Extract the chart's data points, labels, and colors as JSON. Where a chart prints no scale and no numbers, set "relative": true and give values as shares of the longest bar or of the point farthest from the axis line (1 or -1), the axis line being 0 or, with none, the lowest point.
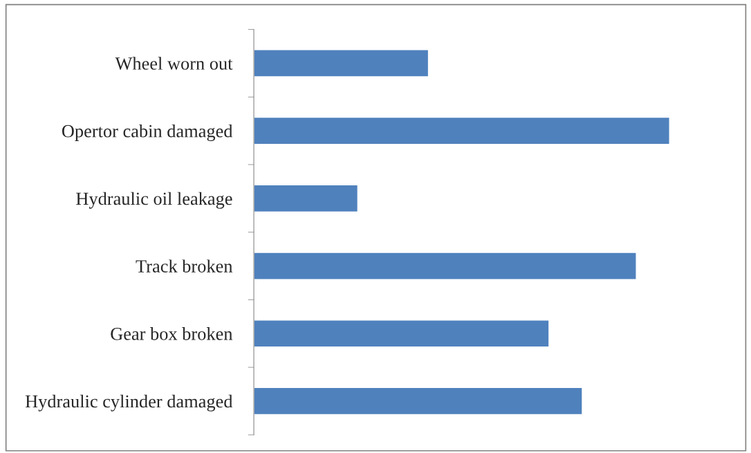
{
  "chart_data": {
    "type": "bar",
    "orientation": "horizontal",
    "relative": true,
    "categories": [
      "Wheel worn out",
      "Opertor cabin damaged",
      "Hydraulic oil leakage",
      "Track broken",
      "Gear box broken",
      "Hydraulic cylinder damaged"
    ],
    "values": [
      0.42,
      1,
      0.25,
      0.92,
      0.71,
      0.79
    ],
    "color": "#4f81bd"
  }
}
